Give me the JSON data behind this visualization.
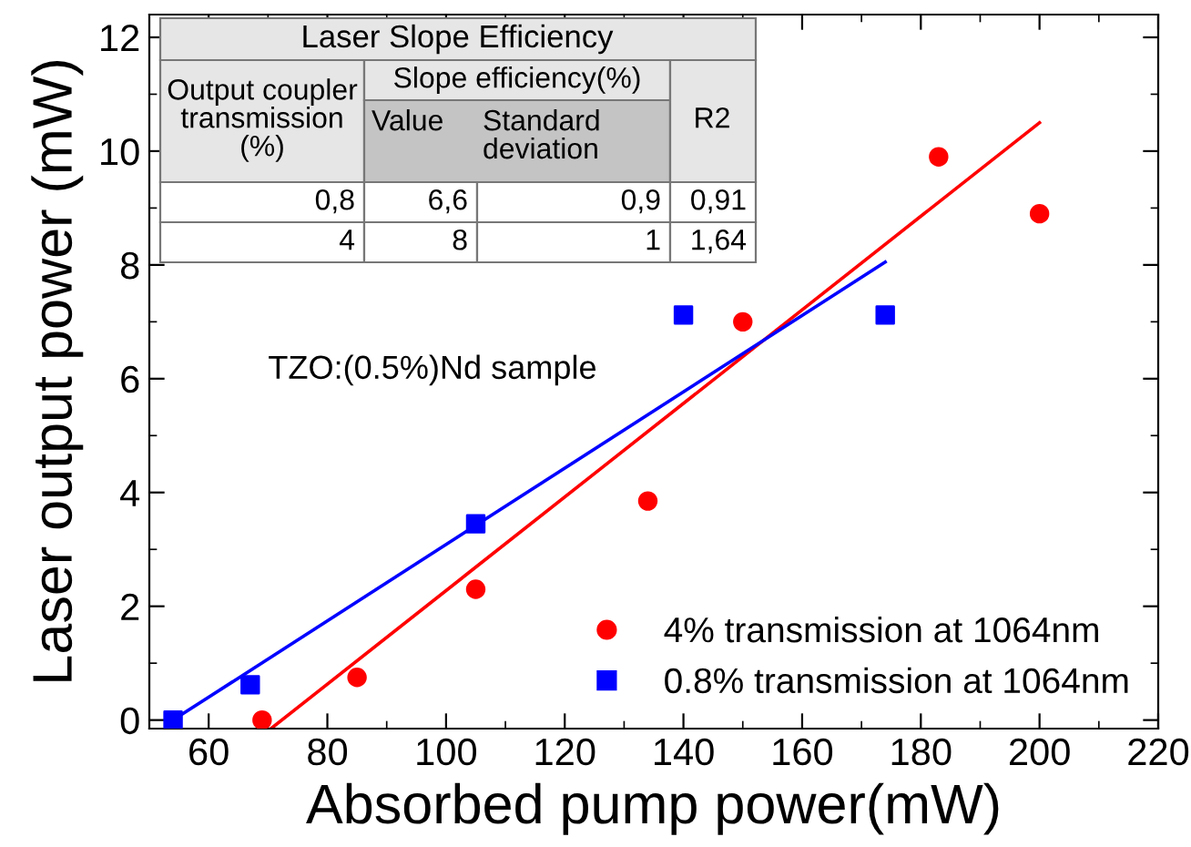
{
  "chart_data": {
    "type": "scatter",
    "xlabel": "Absorbed pump power(mW)",
    "ylabel": "Laser output power (mW)",
    "xlim": [
      50,
      220
    ],
    "xticks": [
      60,
      80,
      100,
      120,
      140,
      160,
      180,
      200,
      220
    ],
    "ylim": [
      -0.15,
      12.4
    ],
    "yticks": [
      0,
      2,
      4,
      6,
      8,
      10,
      12
    ],
    "grid": false,
    "legend": "bottom right",
    "series": [
      {
        "name": "4% transmission at 1064nm",
        "color": "#ff0000",
        "marker": "circle",
        "x": [
          69,
          85,
          105,
          134,
          150,
          183,
          200
        ],
        "values": [
          0,
          0.75,
          2.3,
          3.85,
          7.0,
          9.9,
          8.9
        ]
      },
      {
        "name": "0.8% transmission at 1064nm",
        "color": "#0000ff",
        "marker": "square",
        "x": [
          54,
          67,
          105,
          140,
          174
        ],
        "values": [
          0,
          0.62,
          3.45,
          7.12,
          7.12
        ]
      },
      {
        "type": "line",
        "color": "#ff0000",
        "x": [
          70.5,
          200
        ],
        "values": [
          -0.15,
          10.5
        ]
      },
      {
        "type": "line",
        "color": "#0000ff",
        "x": [
          54,
          174
        ],
        "values": [
          0,
          8.05
        ]
      }
    ],
    "annotations": [
      "TZO:(0.5%)Nd sample",
      "Laser Slope Efficiency",
      "Output coupler\ntransmission\n(%)",
      "Slope efficiency(%)",
      "Value",
      "Standard\ndeviation",
      "R2",
      "0,8",
      "6,6",
      "0,9",
      "0,91",
      "4",
      "8",
      "1",
      "1,64"
    ]
  }
}
